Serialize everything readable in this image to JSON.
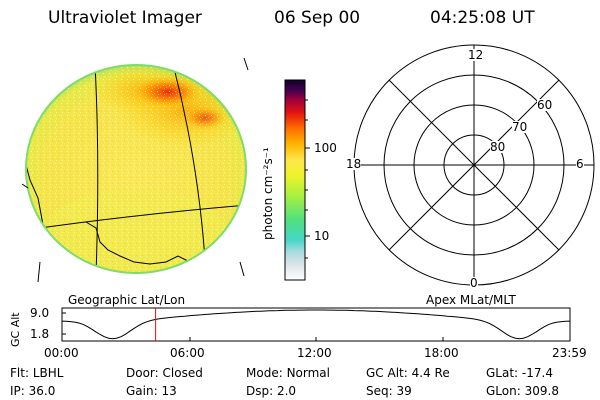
{
  "header": {
    "instrument": "Ultraviolet Imager",
    "date": "06 Sep 00",
    "time": "04:25:08 UT"
  },
  "colorbar": {
    "unit_label": "photon cm⁻²s⁻¹",
    "ticks": [
      {
        "value": 100,
        "label": "100"
      },
      {
        "value": 10,
        "label": "10"
      }
    ],
    "scale": "log",
    "colors": [
      "#ffffff",
      "#dfe6ea",
      "#a9dbe0",
      "#47d6c8",
      "#4fe080",
      "#a8f040",
      "#eef22a",
      "#ffe64a",
      "#ffb400",
      "#ff6a00",
      "#e01010",
      "#a0003c",
      "#400050",
      "#100028"
    ]
  },
  "polar_plot": {
    "mlt_labels": {
      "top": "12",
      "left": "18",
      "right": "6",
      "bottom": "0"
    },
    "lat_labels": [
      "60",
      "70",
      "80"
    ]
  },
  "altitude_strip": {
    "left_title": "Geographic Lat/Lon",
    "right_title": "Apex MLat/MLT",
    "ylabel": "GC Alt",
    "y_ticks": [
      "9.0",
      "1.8"
    ],
    "x_ticks": [
      "00:00",
      "06:00",
      "12:00",
      "18:00",
      "23:59"
    ],
    "marker_time": "04:25"
  },
  "footer": {
    "row1": [
      {
        "key": "Flt:",
        "value": "LBHL"
      },
      {
        "key": "Door:",
        "value": "Closed"
      },
      {
        "key": "Mode:",
        "value": "Normal"
      },
      {
        "key": "GC Alt:",
        "value": "4.4 Re"
      },
      {
        "key": "GLat:",
        "value": "-17.4"
      }
    ],
    "row2": [
      {
        "key": "IP:",
        "value": "36.0"
      },
      {
        "key": "Gain:",
        "value": "13"
      },
      {
        "key": "Dsp:",
        "value": "2.0"
      },
      {
        "key": "Seq:",
        "value": "39"
      },
      {
        "key": "GLon:",
        "value": "309.8"
      }
    ]
  },
  "colors": {
    "aurora_high": "#e01010",
    "aurora_mid": "#ff9800",
    "disk_base": "#f6e84a",
    "disk_edge": "#9be060",
    "marker": "#e01010"
  }
}
